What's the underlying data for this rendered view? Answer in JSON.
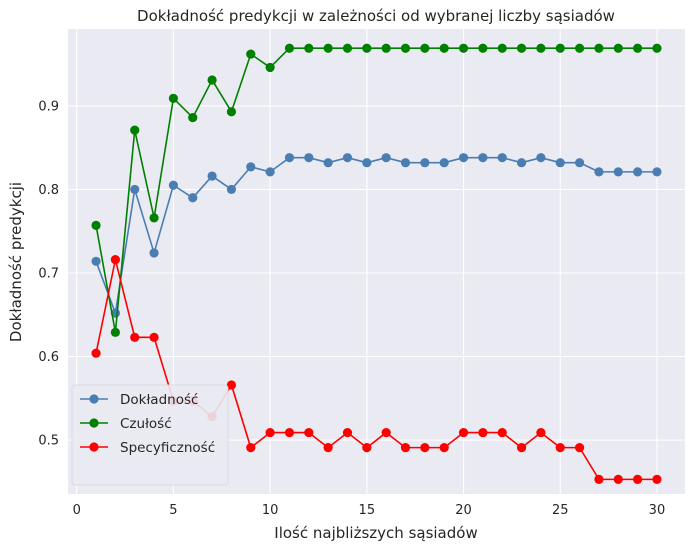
{
  "chart_data": {
    "type": "line",
    "title": "Dokładność predykcji w zależności od wybranej liczby sąsiadów",
    "xlabel": "Ilość najbliższych sąsiadów",
    "ylabel": "Dokładność predykcji",
    "xlim": [
      -0.45,
      31.45
    ],
    "ylim": [
      0.4355,
      0.992
    ],
    "xticks": [
      0,
      5,
      10,
      15,
      20,
      25,
      30
    ],
    "yticks": [
      0.5,
      0.6,
      0.7,
      0.8,
      0.9
    ],
    "ytick_labels": [
      "0.5",
      "0.6",
      "0.7",
      "0.8",
      "0.9"
    ],
    "grid": true,
    "legend_position": "lower-left",
    "x": [
      1,
      2,
      3,
      4,
      5,
      6,
      7,
      8,
      9,
      10,
      11,
      12,
      13,
      14,
      15,
      16,
      17,
      18,
      19,
      20,
      21,
      22,
      23,
      24,
      25,
      26,
      27,
      28,
      29,
      30
    ],
    "series": [
      {
        "name": "Dokładność",
        "color": "#4a7eb2",
        "values": [
          0.714,
          0.652,
          0.8,
          0.724,
          0.805,
          0.79,
          0.816,
          0.8,
          0.827,
          0.821,
          0.838,
          0.838,
          0.832,
          0.838,
          0.832,
          0.838,
          0.832,
          0.832,
          0.832,
          0.838,
          0.838,
          0.838,
          0.832,
          0.838,
          0.832,
          0.832,
          0.821,
          0.821,
          0.821,
          0.821
        ]
      },
      {
        "name": "Czułość",
        "color": "#008000",
        "values": [
          0.757,
          0.629,
          0.871,
          0.766,
          0.909,
          0.886,
          0.931,
          0.893,
          0.962,
          0.946,
          0.969,
          0.969,
          0.969,
          0.969,
          0.969,
          0.969,
          0.969,
          0.969,
          0.969,
          0.969,
          0.969,
          0.969,
          0.969,
          0.969,
          0.969,
          0.969,
          0.969,
          0.969,
          0.969,
          0.969
        ]
      },
      {
        "name": "Specyficzność",
        "color": "#ff0000",
        "values": [
          0.604,
          0.716,
          0.623,
          0.623,
          0.547,
          0.547,
          0.528,
          0.566,
          0.491,
          0.509,
          0.509,
          0.509,
          0.491,
          0.509,
          0.491,
          0.509,
          0.491,
          0.491,
          0.491,
          0.509,
          0.509,
          0.509,
          0.491,
          0.509,
          0.491,
          0.491,
          0.453,
          0.453,
          0.453,
          0.453
        ]
      }
    ]
  }
}
